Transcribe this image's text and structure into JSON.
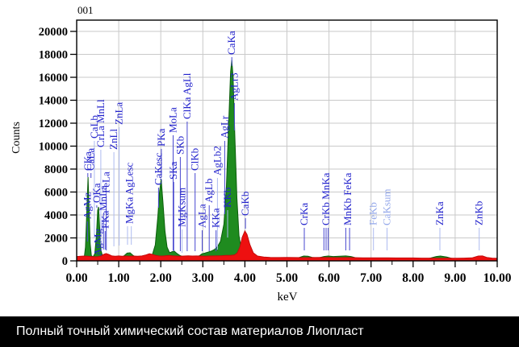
{
  "caption": {
    "text": "Полный точный химический состав материалов Лиопласт"
  },
  "chart_data": {
    "type": "area",
    "title": "001",
    "xlabel": "keV",
    "ylabel": "Counts",
    "xlim": [
      0,
      10
    ],
    "ylim": [
      0,
      20000
    ],
    "grid": true,
    "x_ticks": [
      "0.00",
      "1.00",
      "2.00",
      "3.00",
      "4.00",
      "5.00",
      "6.00",
      "7.00",
      "8.00",
      "9.00",
      "10.00"
    ],
    "y_ticks": [
      "0",
      "2000",
      "4000",
      "6000",
      "8000",
      "10000",
      "12000",
      "14000",
      "16000",
      "18000",
      "20000"
    ],
    "colors": {
      "green_fill": "#1f8b1f",
      "green_edge": "#0b5d0b",
      "red_fill": "#ee1010",
      "red_edge": "#c50b0b",
      "label": "#2222cc",
      "label_pale": "#93a7ea",
      "leader": "#4848d0",
      "leader_pale": "#aebbf0",
      "grid": "#c9c9c9",
      "frame": "#000000"
    },
    "series": [
      {
        "name": "spectrum-green",
        "fill": "green_fill",
        "edge": "green_edge",
        "points": [
          [
            0.0,
            30
          ],
          [
            0.08,
            40
          ],
          [
            0.14,
            80
          ],
          [
            0.18,
            300
          ],
          [
            0.21,
            1200
          ],
          [
            0.24,
            4200
          ],
          [
            0.27,
            7300
          ],
          [
            0.295,
            4500
          ],
          [
            0.32,
            1500
          ],
          [
            0.35,
            450
          ],
          [
            0.39,
            350
          ],
          [
            0.43,
            600
          ],
          [
            0.47,
            2200
          ],
          [
            0.5,
            4400
          ],
          [
            0.52,
            4700
          ],
          [
            0.55,
            2600
          ],
          [
            0.58,
            900
          ],
          [
            0.62,
            350
          ],
          [
            0.68,
            260
          ],
          [
            0.75,
            240
          ],
          [
            0.82,
            260
          ],
          [
            0.9,
            330
          ],
          [
            0.98,
            300
          ],
          [
            1.05,
            320
          ],
          [
            1.12,
            420
          ],
          [
            1.2,
            680
          ],
          [
            1.27,
            700
          ],
          [
            1.34,
            480
          ],
          [
            1.42,
            300
          ],
          [
            1.52,
            260
          ],
          [
            1.62,
            280
          ],
          [
            1.72,
            340
          ],
          [
            1.8,
            550
          ],
          [
            1.87,
            1400
          ],
          [
            1.93,
            3900
          ],
          [
            1.97,
            6000
          ],
          [
            2.01,
            7100
          ],
          [
            2.05,
            5200
          ],
          [
            2.1,
            2600
          ],
          [
            2.15,
            1200
          ],
          [
            2.21,
            700
          ],
          [
            2.27,
            800
          ],
          [
            2.32,
            850
          ],
          [
            2.38,
            650
          ],
          [
            2.45,
            480
          ],
          [
            2.52,
            380
          ],
          [
            2.6,
            330
          ],
          [
            2.68,
            310
          ],
          [
            2.76,
            330
          ],
          [
            2.84,
            360
          ],
          [
            2.92,
            450
          ],
          [
            2.98,
            620
          ],
          [
            3.05,
            680
          ],
          [
            3.12,
            760
          ],
          [
            3.2,
            850
          ],
          [
            3.28,
            1000
          ],
          [
            3.35,
            1250
          ],
          [
            3.42,
            1700
          ],
          [
            3.5,
            3200
          ],
          [
            3.56,
            6500
          ],
          [
            3.62,
            12500
          ],
          [
            3.66,
            16500
          ],
          [
            3.69,
            17500
          ],
          [
            3.72,
            16000
          ],
          [
            3.76,
            11000
          ],
          [
            3.81,
            5500
          ],
          [
            3.86,
            2200
          ],
          [
            3.92,
            900
          ],
          [
            3.98,
            450
          ],
          [
            4.05,
            280
          ],
          [
            4.15,
            200
          ],
          [
            4.3,
            160
          ],
          [
            4.5,
            150
          ],
          [
            4.7,
            150
          ],
          [
            4.9,
            150
          ],
          [
            5.1,
            160
          ],
          [
            5.3,
            300
          ],
          [
            5.4,
            420
          ],
          [
            5.5,
            400
          ],
          [
            5.6,
            300
          ],
          [
            5.75,
            250
          ],
          [
            5.88,
            380
          ],
          [
            5.98,
            420
          ],
          [
            6.1,
            380
          ],
          [
            6.25,
            400
          ],
          [
            6.4,
            430
          ],
          [
            6.52,
            380
          ],
          [
            6.65,
            250
          ],
          [
            6.8,
            180
          ],
          [
            7.0,
            160
          ],
          [
            7.2,
            150
          ],
          [
            7.5,
            140
          ],
          [
            7.8,
            140
          ],
          [
            8.1,
            150
          ],
          [
            8.35,
            180
          ],
          [
            8.55,
            380
          ],
          [
            8.65,
            420
          ],
          [
            8.8,
            330
          ],
          [
            8.95,
            180
          ],
          [
            9.15,
            150
          ],
          [
            9.4,
            140
          ],
          [
            9.6,
            150
          ],
          [
            9.8,
            130
          ],
          [
            10.0,
            120
          ]
        ]
      },
      {
        "name": "spectrum-red",
        "fill": "red_fill",
        "edge": "red_edge",
        "points": [
          [
            0.0,
            380
          ],
          [
            0.1,
            400
          ],
          [
            0.18,
            420
          ],
          [
            0.26,
            400
          ],
          [
            0.34,
            380
          ],
          [
            0.42,
            360
          ],
          [
            0.5,
            360
          ],
          [
            0.58,
            420
          ],
          [
            0.64,
            560
          ],
          [
            0.7,
            640
          ],
          [
            0.76,
            560
          ],
          [
            0.84,
            430
          ],
          [
            0.92,
            400
          ],
          [
            1.0,
            430
          ],
          [
            1.08,
            400
          ],
          [
            1.16,
            420
          ],
          [
            1.25,
            400
          ],
          [
            1.35,
            420
          ],
          [
            1.45,
            400
          ],
          [
            1.55,
            430
          ],
          [
            1.65,
            520
          ],
          [
            1.73,
            620
          ],
          [
            1.8,
            560
          ],
          [
            1.88,
            480
          ],
          [
            1.96,
            430
          ],
          [
            2.04,
            420
          ],
          [
            2.12,
            450
          ],
          [
            2.2,
            470
          ],
          [
            2.28,
            440
          ],
          [
            2.36,
            420
          ],
          [
            2.45,
            400
          ],
          [
            2.55,
            420
          ],
          [
            2.65,
            440
          ],
          [
            2.75,
            420
          ],
          [
            2.85,
            430
          ],
          [
            2.95,
            420
          ],
          [
            3.05,
            410
          ],
          [
            3.15,
            420
          ],
          [
            3.25,
            430
          ],
          [
            3.35,
            440
          ],
          [
            3.45,
            450
          ],
          [
            3.55,
            470
          ],
          [
            3.65,
            480
          ],
          [
            3.75,
            520
          ],
          [
            3.82,
            700
          ],
          [
            3.88,
            1200
          ],
          [
            3.94,
            2100
          ],
          [
            4.0,
            2600
          ],
          [
            4.05,
            2300
          ],
          [
            4.12,
            1400
          ],
          [
            4.2,
            700
          ],
          [
            4.3,
            420
          ],
          [
            4.45,
            330
          ],
          [
            4.6,
            300
          ],
          [
            4.8,
            290
          ],
          [
            5.0,
            300
          ],
          [
            5.2,
            290
          ],
          [
            5.4,
            280
          ],
          [
            5.6,
            290
          ],
          [
            5.8,
            300
          ],
          [
            6.0,
            290
          ],
          [
            6.2,
            280
          ],
          [
            6.4,
            290
          ],
          [
            6.6,
            280
          ],
          [
            6.8,
            270
          ],
          [
            7.0,
            270
          ],
          [
            7.2,
            260
          ],
          [
            7.4,
            260
          ],
          [
            7.6,
            250
          ],
          [
            7.8,
            250
          ],
          [
            8.0,
            250
          ],
          [
            8.2,
            240
          ],
          [
            8.4,
            240
          ],
          [
            8.6,
            230
          ],
          [
            8.8,
            240
          ],
          [
            9.0,
            230
          ],
          [
            9.2,
            240
          ],
          [
            9.4,
            260
          ],
          [
            9.55,
            420
          ],
          [
            9.65,
            430
          ],
          [
            9.75,
            300
          ],
          [
            9.88,
            240
          ],
          [
            10.0,
            230
          ]
        ]
      }
    ],
    "peak_labels": [
      {
        "t": "CKa",
        "kev": 0.265,
        "tb": 212,
        "lb": 220
      },
      {
        "t": "CaLa",
        "kev": 0.34,
        "tb": 212,
        "lb": 221
      },
      {
        "t": "CaLb",
        "kev": 0.42,
        "tb": 172,
        "lb": 296,
        "pale": true
      },
      {
        "t": "AgMz",
        "kev": 0.255,
        "tb": 272,
        "lb": 300
      },
      {
        "t": "AgMg",
        "kev": 0.505,
        "tb": 318,
        "lb": 318
      },
      {
        "t": "OKa",
        "kev": 0.478,
        "tb": 252,
        "lb": 258
      },
      {
        "t": "FKa",
        "kev": 0.677,
        "tb": 284,
        "lb": 310
      },
      {
        "t": "MnLa",
        "kev": 0.637,
        "tb": 262,
        "lb": 310
      },
      {
        "t": "FeLa",
        "kev": 0.705,
        "tb": 240,
        "lb": 311
      },
      {
        "t": "CrLa MnLl",
        "kev": 0.573,
        "tb": 183,
        "lb": 305,
        "pale": true
      },
      {
        "t": "ZnLl",
        "kev": 0.884,
        "tb": 186,
        "lb": 306,
        "pale": true
      },
      {
        "t": "ZnLa",
        "kev": 1.012,
        "tb": 155,
        "lb": 305,
        "pale": true
      },
      {
        "t": "MgKa AgLesc",
        "kev": 1.253,
        "tb": 278,
        "lb": 304,
        "pale": true,
        "leaders": [
          1.21,
          1.3
        ]
      },
      {
        "t": "CaKesc",
        "kev": 1.947,
        "tb": 230,
        "lb": 258
      },
      {
        "t": "PKa",
        "kev": 2.013,
        "tb": 182,
        "lb": 218
      },
      {
        "t": "SKa",
        "kev": 2.307,
        "tb": 223,
        "lb": 312
      },
      {
        "t": "SKb",
        "kev": 2.464,
        "tb": 192,
        "lb": 312
      },
      {
        "t": "MoLa",
        "kev": 2.293,
        "tb": 165,
        "lb": 311
      },
      {
        "t": "ClKa AgLl",
        "kev": 2.627,
        "tb": 148,
        "lb": 312
      },
      {
        "t": "MgKsum",
        "kev": 2.507,
        "tb": 282,
        "lb": 314,
        "pale": true
      },
      {
        "t": "ClKb",
        "kev": 2.815,
        "tb": 212,
        "lb": 312
      },
      {
        "t": "AgLa",
        "kev": 2.984,
        "tb": 283,
        "lb": 312
      },
      {
        "t": "AgLb",
        "kev": 3.151,
        "tb": 252,
        "lb": 312
      },
      {
        "t": "KKa",
        "kev": 3.314,
        "tb": 283,
        "lb": 312
      },
      {
        "t": "AgLb2",
        "kev": 3.348,
        "tb": 218,
        "lb": 310,
        "pale": true
      },
      {
        "t": "AgLr",
        "kev": 3.52,
        "tb": 172,
        "lb": 266
      },
      {
        "t": "KKb",
        "kev": 3.59,
        "tb": 258,
        "lb": 295,
        "pale": true
      },
      {
        "t": "CaKa",
        "kev": 3.69,
        "tb": 68,
        "lb": 82
      },
      {
        "t": "AgLr3",
        "kev": 3.75,
        "tb": 125,
        "lb": 162
      },
      {
        "t": "CaKb",
        "kev": 4.013,
        "tb": 268,
        "lb": 284
      },
      {
        "t": "CrKa",
        "kev": 5.412,
        "tb": 280,
        "lb": 311
      },
      {
        "t": "CrKb MnKa",
        "kev": 5.93,
        "tb": 280,
        "lb": 311,
        "leaders": [
          5.88,
          5.93,
          5.98
        ]
      },
      {
        "t": "MnKb FeKa",
        "kev": 6.45,
        "tb": 280,
        "lb": 311,
        "leaders": [
          6.4,
          6.49
        ]
      },
      {
        "t": "FeKb",
        "kev": 7.058,
        "tb": 280,
        "lb": 311,
        "pale": true,
        "paleText": true
      },
      {
        "t": "CaKsum",
        "kev": 7.38,
        "tb": 280,
        "lb": 311,
        "pale": true,
        "paleText": true
      },
      {
        "t": "ZnKa",
        "kev": 8.637,
        "tb": 280,
        "lb": 311,
        "pale": true
      },
      {
        "t": "ZnKb",
        "kev": 9.572,
        "tb": 280,
        "lb": 311,
        "pale": true
      }
    ]
  }
}
